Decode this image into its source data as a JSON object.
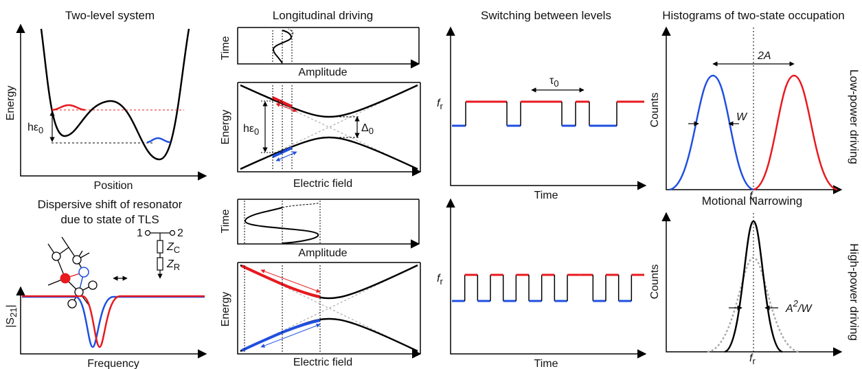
{
  "titles": {
    "two_level": "Two-level system",
    "longitudinal": "Longitudinal driving",
    "switching": "Switching between levels",
    "histograms": "Histograms of two-state occupation",
    "dispersive_line1": "Dispersive shift of resonator",
    "dispersive_line2": "due to state of TLS",
    "motional": "Motional Narrowing"
  },
  "side_labels": {
    "low": "Low-power driving",
    "high": "High-power driving"
  },
  "axes": {
    "energy": "Energy",
    "position": "Position",
    "time": "Time",
    "amplitude": "Amplitude",
    "electric_field": "Electric field",
    "counts": "Counts",
    "frequency": "Frequency",
    "fr": "f",
    "fr_sub": "r",
    "s21": "|S",
    "s21_sub": "21",
    "s21_end": "|"
  },
  "annotations": {
    "h_eps0": "hε",
    "sub0": "0",
    "delta0": "Δ",
    "tau0": "τ",
    "two_a": "2A",
    "w": "W",
    "a2w_a": "A",
    "a2w_sup": "2",
    "a2w_tail": "/W",
    "node1": "1",
    "node2": "2",
    "zc": "Z",
    "zc_sub": "C",
    "zr": "Z",
    "zr_sub": "R"
  },
  "colors": {
    "red": "#e8191f",
    "blue": "#1f4fe0",
    "black": "#000000",
    "gray": "#aaaaaa"
  },
  "switching": {
    "low_power_states": [
      "low",
      "high",
      "high",
      "high",
      "low",
      "high",
      "high",
      "high",
      "low",
      "high",
      "low",
      "low",
      "high",
      "high"
    ],
    "high_power_states": [
      "low",
      "high",
      "low",
      "high",
      "low",
      "high",
      "low",
      "high",
      "low",
      "high",
      "high",
      "low",
      "high",
      "low",
      "high"
    ]
  }
}
